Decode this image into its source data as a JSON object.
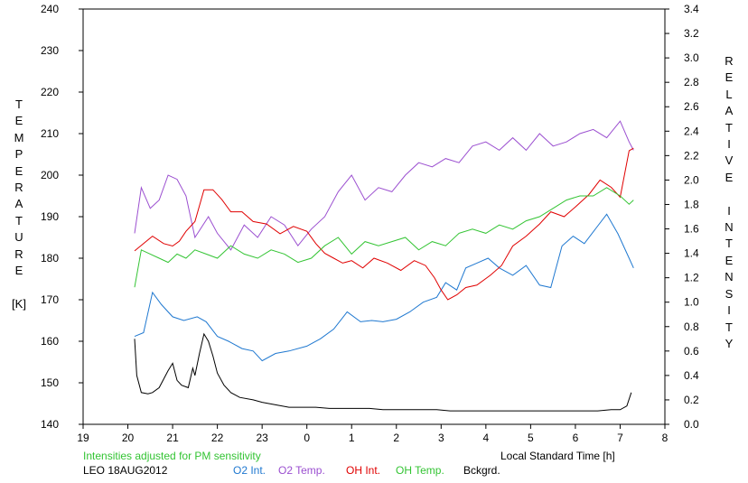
{
  "chart_data": {
    "type": "line",
    "xlabel": "Local Standard Time [h]",
    "ylabel_left": [
      "T",
      "E",
      "M",
      "P",
      "E",
      "R",
      "A",
      "T",
      "U",
      "R",
      "E",
      "",
      "[K]"
    ],
    "ylabel_right": [
      "R",
      "E",
      "L",
      "A",
      "T",
      "I",
      "V",
      "E",
      "",
      "I",
      "N",
      "T",
      "E",
      "N",
      "S",
      "I",
      "T",
      "Y"
    ],
    "x_ticks": [
      "19",
      "20",
      "21",
      "22",
      "23",
      "0",
      "1",
      "2",
      "3",
      "4",
      "5",
      "6",
      "7",
      "8"
    ],
    "y_left_ticks": [
      "140",
      "150",
      "160",
      "170",
      "180",
      "190",
      "200",
      "210",
      "220",
      "230",
      "240"
    ],
    "y_right_ticks": [
      "0.0",
      "0.2",
      "0.4",
      "0.6",
      "0.8",
      "1.0",
      "1.2",
      "1.4",
      "1.6",
      "1.8",
      "2.0",
      "2.2",
      "2.4",
      "2.6",
      "2.8",
      "3.0",
      "3.2",
      "3.4"
    ],
    "xlim": [
      19,
      32
    ],
    "ylim_left": [
      140,
      240
    ],
    "ylim_right": [
      0.0,
      3.4
    ],
    "note": "Intensities adjusted for PM sensitivity",
    "station": "LEO 18AUG2012",
    "series": [
      {
        "name": "O2 Int.",
        "axis": "right",
        "color": "#1f78d0",
        "x": [
          20.15,
          20.35,
          20.55,
          20.75,
          21.0,
          21.25,
          21.55,
          21.75,
          22.0,
          22.25,
          22.55,
          22.8,
          23.0,
          23.3,
          23.6,
          24.0,
          24.3,
          24.6,
          24.9,
          25.2,
          25.45,
          25.7,
          26.0,
          26.3,
          26.6,
          26.9,
          27.1,
          27.35,
          27.55,
          27.8,
          28.05,
          28.3,
          28.6,
          28.9,
          29.2,
          29.45,
          29.7,
          29.95,
          30.2,
          30.45,
          30.7,
          30.95,
          31.2,
          31.3
        ],
        "y": [
          0.72,
          0.75,
          1.08,
          0.98,
          0.88,
          0.85,
          0.88,
          0.84,
          0.72,
          0.68,
          0.62,
          0.6,
          0.52,
          0.58,
          0.6,
          0.64,
          0.7,
          0.78,
          0.92,
          0.84,
          0.85,
          0.84,
          0.86,
          0.92,
          1.0,
          1.04,
          1.16,
          1.1,
          1.28,
          1.32,
          1.36,
          1.28,
          1.22,
          1.3,
          1.14,
          1.12,
          1.46,
          1.54,
          1.48,
          1.6,
          1.72,
          1.56,
          1.36,
          1.28
        ]
      },
      {
        "name": "O2 Temp.",
        "axis": "left",
        "color": "#9b4fd0",
        "x": [
          20.15,
          20.3,
          20.5,
          20.7,
          20.9,
          21.1,
          21.3,
          21.5,
          21.8,
          22.0,
          22.3,
          22.6,
          22.9,
          23.2,
          23.5,
          23.8,
          24.1,
          24.4,
          24.7,
          25.0,
          25.3,
          25.6,
          25.9,
          26.2,
          26.5,
          26.8,
          27.1,
          27.4,
          27.7,
          28.0,
          28.3,
          28.6,
          28.9,
          29.2,
          29.5,
          29.8,
          30.1,
          30.4,
          30.7,
          31.0,
          31.2,
          31.3
        ],
        "y": [
          186,
          197,
          192,
          194,
          200,
          199,
          195,
          185,
          190,
          186,
          182,
          188,
          185,
          190,
          188,
          183,
          187,
          190,
          196,
          200,
          194,
          197,
          196,
          200,
          203,
          202,
          204,
          203,
          207,
          208,
          206,
          209,
          206,
          210,
          207,
          208,
          210,
          211,
          209,
          213,
          208,
          206
        ]
      },
      {
        "name": "OH Int.",
        "axis": "right",
        "color": "#e00000",
        "x": [
          20.15,
          20.35,
          20.55,
          20.8,
          21.0,
          21.15,
          21.3,
          21.5,
          21.7,
          21.9,
          22.1,
          22.3,
          22.55,
          22.8,
          23.1,
          23.4,
          23.7,
          24.0,
          24.2,
          24.4,
          24.6,
          24.8,
          25.0,
          25.25,
          25.5,
          25.8,
          26.1,
          26.4,
          26.65,
          26.85,
          27.0,
          27.15,
          27.35,
          27.55,
          27.8,
          28.1,
          28.35,
          28.6,
          28.9,
          29.2,
          29.45,
          29.75,
          30.0,
          30.3,
          30.55,
          30.8,
          31.0,
          31.2,
          31.3
        ],
        "y": [
          1.42,
          1.48,
          1.54,
          1.48,
          1.46,
          1.5,
          1.58,
          1.66,
          1.92,
          1.92,
          1.84,
          1.74,
          1.74,
          1.66,
          1.64,
          1.56,
          1.62,
          1.58,
          1.48,
          1.4,
          1.36,
          1.32,
          1.34,
          1.28,
          1.36,
          1.32,
          1.26,
          1.34,
          1.3,
          1.2,
          1.1,
          1.02,
          1.06,
          1.12,
          1.14,
          1.22,
          1.3,
          1.46,
          1.54,
          1.64,
          1.74,
          1.7,
          1.78,
          1.88,
          2.0,
          1.94,
          1.86,
          2.24,
          2.26
        ]
      },
      {
        "name": "OH Temp.",
        "axis": "left",
        "color": "#33c433",
        "x": [
          20.15,
          20.3,
          20.5,
          20.7,
          20.9,
          21.1,
          21.3,
          21.5,
          21.75,
          22.0,
          22.3,
          22.6,
          22.9,
          23.2,
          23.5,
          23.8,
          24.1,
          24.4,
          24.7,
          25.0,
          25.3,
          25.6,
          25.9,
          26.2,
          26.5,
          26.8,
          27.1,
          27.4,
          27.7,
          28.0,
          28.3,
          28.6,
          28.9,
          29.2,
          29.5,
          29.8,
          30.1,
          30.4,
          30.7,
          31.0,
          31.2,
          31.3
        ],
        "y": [
          173,
          182,
          181,
          180,
          179,
          181,
          180,
          182,
          181,
          180,
          183,
          181,
          180,
          182,
          181,
          179,
          180,
          183,
          185,
          181,
          184,
          183,
          184,
          185,
          182,
          184,
          183,
          186,
          187,
          186,
          188,
          187,
          189,
          190,
          192,
          194,
          195,
          195,
          197,
          195,
          193,
          194
        ]
      },
      {
        "name": "Bckgrd.",
        "axis": "right",
        "color": "#000000",
        "x": [
          20.15,
          20.2,
          20.3,
          20.45,
          20.55,
          20.7,
          20.9,
          21.0,
          21.1,
          21.2,
          21.35,
          21.45,
          21.5,
          21.6,
          21.7,
          21.8,
          21.9,
          22.0,
          22.15,
          22.3,
          22.5,
          22.8,
          23.0,
          23.3,
          23.6,
          23.9,
          24.2,
          24.5,
          24.8,
          25.1,
          25.4,
          25.7,
          26.0,
          26.3,
          26.6,
          26.9,
          27.2,
          27.5,
          27.8,
          28.1,
          28.4,
          28.7,
          29.0,
          29.3,
          29.6,
          29.9,
          30.2,
          30.5,
          30.8,
          31.0,
          31.15,
          31.25
        ],
        "y": [
          0.7,
          0.4,
          0.26,
          0.25,
          0.26,
          0.3,
          0.44,
          0.5,
          0.36,
          0.32,
          0.3,
          0.46,
          0.4,
          0.58,
          0.74,
          0.68,
          0.56,
          0.42,
          0.32,
          0.26,
          0.22,
          0.2,
          0.18,
          0.16,
          0.14,
          0.14,
          0.14,
          0.13,
          0.13,
          0.13,
          0.13,
          0.12,
          0.12,
          0.12,
          0.12,
          0.12,
          0.11,
          0.11,
          0.11,
          0.11,
          0.11,
          0.11,
          0.11,
          0.11,
          0.11,
          0.11,
          0.11,
          0.11,
          0.12,
          0.12,
          0.15,
          0.26
        ]
      }
    ]
  }
}
